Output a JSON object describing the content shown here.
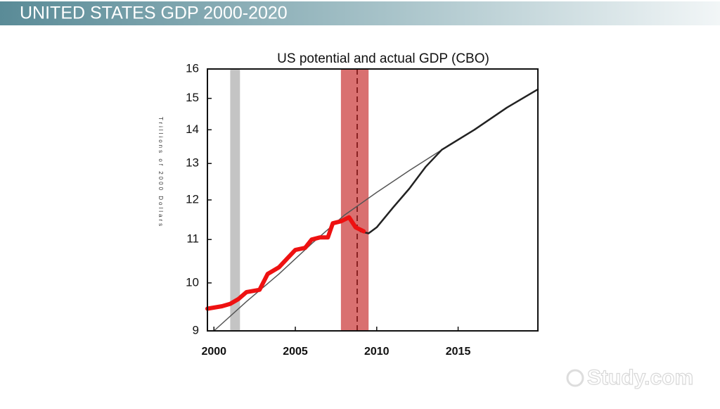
{
  "header": {
    "title": "UNITED STATES GDP 2000-2020"
  },
  "chart_data": {
    "type": "line",
    "title": "US potential and actual GDP (CBO)",
    "y_label": "Trillions of 2000 Dollars",
    "log_scale": true,
    "ylim": [
      9,
      16
    ],
    "yticks": [
      9,
      10,
      11,
      12,
      13,
      14,
      15,
      16
    ],
    "xlim": [
      1999.6,
      2019.9
    ],
    "xticks": [
      2000,
      2005,
      2010,
      2015
    ],
    "shaded_regions": [
      {
        "start": 2001.0,
        "end": 2001.6,
        "color": "#c4c4c4"
      },
      {
        "start": 2007.8,
        "end": 2009.5,
        "color": "#d97070"
      }
    ],
    "vlines": [
      {
        "x": 2008.8,
        "color": "#8a2222",
        "dashed": true
      }
    ],
    "series": [
      {
        "color": "#555555",
        "line_width": 1.5,
        "x": [
          2000,
          2002,
          2004,
          2006,
          2008,
          2010,
          2012,
          2014,
          2016,
          2018,
          2019.9
        ],
        "values": [
          9.0,
          9.6,
          10.2,
          10.9,
          11.6,
          12.2,
          12.8,
          13.4,
          14.0,
          14.7,
          15.3
        ]
      },
      {
        "color": "#222222",
        "line_width": 2.5,
        "x": [
          2009.0,
          2009.5,
          2010,
          2011,
          2012,
          2013,
          2014,
          2016,
          2018,
          2019.9
        ],
        "values": [
          11.2,
          11.15,
          11.3,
          11.8,
          12.3,
          12.9,
          13.4,
          14.0,
          14.7,
          15.3
        ]
      },
      {
        "color": "#ee1111",
        "line_width": 6,
        "x": [
          1999.6,
          2000.5,
          2001,
          2001.5,
          2002,
          2002.8,
          2003.3,
          2004,
          2004.5,
          2005,
          2005.6,
          2006,
          2006.5,
          2007,
          2007.3,
          2007.8,
          2008.3,
          2008.7,
          2009.2
        ],
        "values": [
          9.45,
          9.5,
          9.55,
          9.65,
          9.8,
          9.85,
          10.2,
          10.35,
          10.55,
          10.75,
          10.8,
          11.0,
          11.05,
          11.05,
          11.4,
          11.45,
          11.55,
          11.3,
          11.2
        ]
      }
    ]
  },
  "watermark": "Study.com"
}
